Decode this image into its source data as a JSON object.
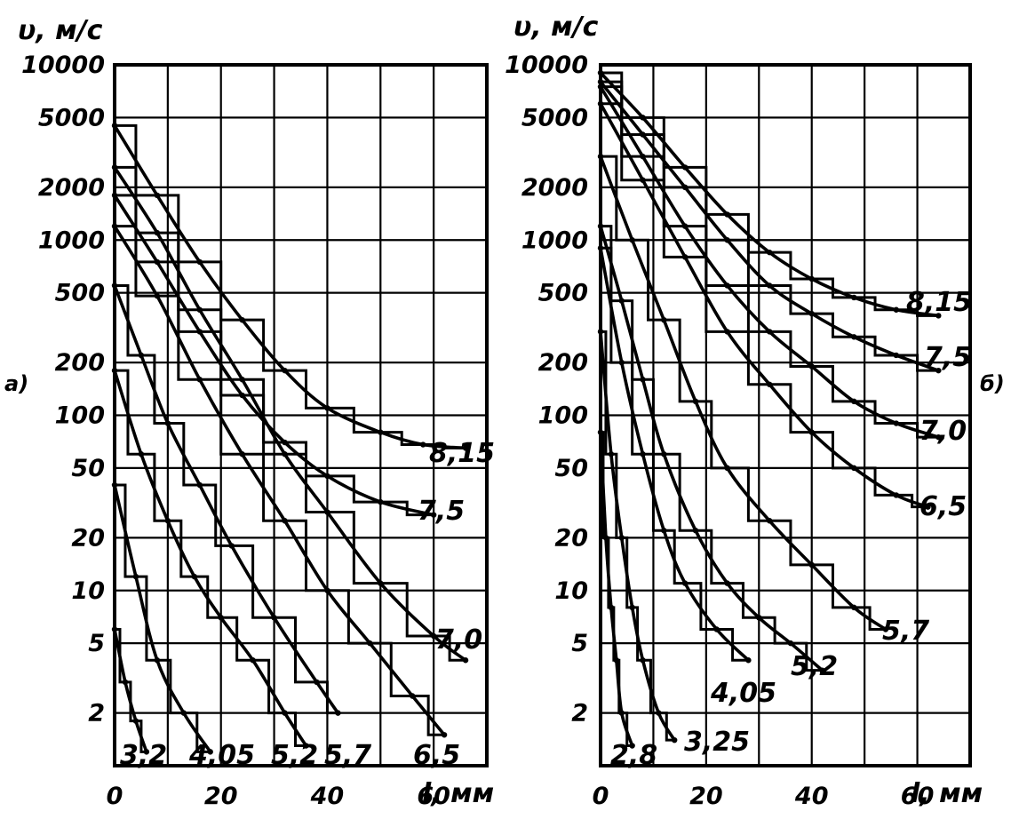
{
  "chart_data": [
    {
      "type": "line",
      "panel": "a)",
      "ylabel": "υ, м/с",
      "xlabel": "l, мм",
      "yscale": "log",
      "ylim": [
        1,
        10000
      ],
      "xlim": [
        0,
        70
      ],
      "yticks": [
        "10000",
        "5000",
        "2000",
        "1000",
        "500",
        "200",
        "100",
        "50",
        "20",
        "10",
        "5",
        "2"
      ],
      "xticks": [
        "0",
        "20",
        "40",
        "60"
      ],
      "series": [
        {
          "name": "3,2",
          "x": [
            0,
            2,
            4,
            6
          ],
          "y": [
            6,
            3,
            1.8,
            1.2
          ]
        },
        {
          "name": "4,05",
          "x": [
            0,
            4,
            8,
            13,
            18
          ],
          "y": [
            40,
            12,
            4,
            2,
            1.2
          ]
        },
        {
          "name": "5,2",
          "x": [
            0,
            5,
            10,
            15,
            20,
            26,
            32,
            36
          ],
          "y": [
            180,
            60,
            25,
            12,
            7,
            4,
            2,
            1.3
          ]
        },
        {
          "name": "5,7",
          "x": [
            0,
            5,
            10,
            16,
            22,
            30,
            38,
            42
          ],
          "y": [
            550,
            220,
            90,
            40,
            18,
            7,
            3,
            2
          ]
        },
        {
          "name": "6,5",
          "x": [
            0,
            8,
            16,
            24,
            32,
            40,
            48,
            56,
            62
          ],
          "y": [
            1200,
            480,
            160,
            60,
            25,
            10,
            5,
            2.5,
            1.5
          ]
        },
        {
          "name": "7,0",
          "x": [
            0,
            8,
            16,
            24,
            32,
            40,
            50,
            60,
            66
          ],
          "y": [
            2600,
            1100,
            400,
            160,
            60,
            28,
            11,
            5.5,
            4
          ]
        },
        {
          "name": "7,5",
          "x": [
            0,
            8,
            16,
            24,
            32,
            40,
            50,
            60
          ],
          "y": [
            1800,
            750,
            300,
            130,
            70,
            45,
            32,
            27
          ]
        },
        {
          "name": "8,15",
          "x": [
            0,
            8,
            16,
            24,
            32,
            40,
            50,
            58,
            66
          ],
          "y": [
            4500,
            1800,
            750,
            350,
            180,
            110,
            80,
            68,
            65
          ]
        }
      ]
    },
    {
      "type": "line",
      "panel": "б)",
      "ylabel": "υ, м/с",
      "xlabel": "l, мм",
      "yscale": "log",
      "ylim": [
        1,
        10000
      ],
      "xlim": [
        0,
        70
      ],
      "yticks": [
        "10000",
        "5000",
        "2000",
        "1000",
        "500",
        "200",
        "100",
        "50",
        "20",
        "10",
        "5",
        "2"
      ],
      "xticks": [
        "0",
        "20",
        "40",
        "60"
      ],
      "series": [
        {
          "name": "2,8",
          "x": [
            0,
            1,
            2,
            3,
            4,
            6
          ],
          "y": [
            80,
            20,
            8,
            4,
            2,
            1.3
          ]
        },
        {
          "name": "3,25",
          "x": [
            0,
            2,
            4,
            6,
            8,
            11,
            14
          ],
          "y": [
            300,
            60,
            20,
            8,
            4,
            2,
            1.4
          ]
        },
        {
          "name": "4,05",
          "x": [
            0,
            4,
            8,
            12,
            16,
            22,
            28
          ],
          "y": [
            900,
            200,
            60,
            22,
            11,
            6,
            4
          ]
        },
        {
          "name": "5,2",
          "x": [
            0,
            4,
            8,
            12,
            18,
            24,
            30,
            36,
            42
          ],
          "y": [
            1200,
            450,
            160,
            60,
            22,
            11,
            7,
            5,
            3.5
          ]
        },
        {
          "name": "5,7",
          "x": [
            0,
            6,
            12,
            18,
            24,
            32,
            40,
            48,
            54
          ],
          "y": [
            3000,
            1000,
            350,
            120,
            50,
            25,
            14,
            8,
            6
          ]
        },
        {
          "name": "6,5",
          "x": [
            0,
            8,
            16,
            24,
            32,
            40,
            48,
            56,
            62
          ],
          "y": [
            6000,
            2200,
            800,
            300,
            150,
            80,
            50,
            35,
            30
          ]
        },
        {
          "name": "7,0",
          "x": [
            0,
            8,
            16,
            24,
            32,
            40,
            48,
            56,
            64
          ],
          "y": [
            7500,
            3000,
            1200,
            550,
            300,
            190,
            120,
            90,
            75
          ]
        },
        {
          "name": "7,5",
          "x": [
            0,
            8,
            16,
            24,
            32,
            40,
            48,
            56,
            64
          ],
          "y": [
            8000,
            4000,
            2000,
            1000,
            550,
            380,
            280,
            220,
            180
          ]
        },
        {
          "name": "8,15",
          "x": [
            0,
            8,
            16,
            24,
            32,
            40,
            48,
            56,
            64
          ],
          "y": [
            9000,
            5000,
            2600,
            1400,
            850,
            600,
            470,
            400,
            370
          ]
        }
      ]
    }
  ]
}
